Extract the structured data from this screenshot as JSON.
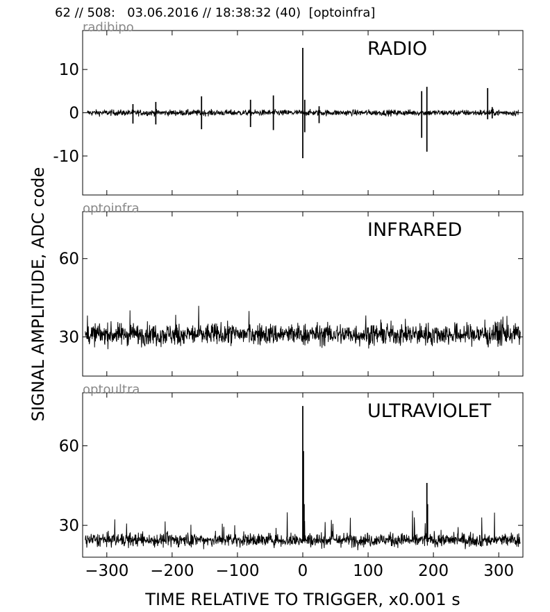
{
  "header": "62 // 508:   03.06.2016 // 18:38:32 (40)  [optoinfra]",
  "chart_data": {
    "type": "line",
    "xlabel": "TIME RELATIVE TO TRIGGER,   x0.001 s",
    "ylabel": "SIGNAL AMPLITUDE,  ADC code",
    "xlim": [
      -337,
      337
    ],
    "xticks": [
      -300,
      -200,
      -100,
      0,
      100,
      200,
      300
    ],
    "xtick_labels": [
      "−300",
      "−200",
      "−100",
      "0",
      "100",
      "200",
      "300"
    ],
    "panels": [
      {
        "channel": "radibipo",
        "title": "RADIO",
        "ylim": [
          -19,
          19
        ],
        "yticks": [
          10,
          0,
          -10
        ],
        "ytick_labels": [
          "10",
          "0",
          "-10"
        ],
        "baseline": 0,
        "noise": 0.7,
        "x_range": [
          -330,
          330
        ],
        "spikes": [
          {
            "x": 0,
            "high": 15,
            "low": -10.5
          },
          {
            "x": 3,
            "high": 3,
            "low": -4.5
          },
          {
            "x": -155,
            "high": 3.8,
            "low": -3.8
          },
          {
            "x": -80,
            "high": 3,
            "low": -3.3
          },
          {
            "x": -45,
            "high": 4,
            "low": -4
          },
          {
            "x": -225,
            "high": 2.5,
            "low": -2.7
          },
          {
            "x": -260,
            "high": 2,
            "low": -2.5
          },
          {
            "x": 25,
            "high": 1.5,
            "low": -2.4
          },
          {
            "x": 182,
            "high": 5,
            "low": -5.8
          },
          {
            "x": 190,
            "high": 6,
            "low": -9
          },
          {
            "x": 283,
            "high": 5.7,
            "low": -1.5
          },
          {
            "x": 290,
            "high": 1.3,
            "low": -1.3
          }
        ]
      },
      {
        "channel": "optoinfra",
        "title": "INFRARED",
        "ylim": [
          15,
          78
        ],
        "yticks": [
          60,
          30
        ],
        "ytick_labels": [
          "60",
          "30"
        ],
        "baseline": 31,
        "noise": 4.2,
        "x_range": [
          -333,
          333
        ],
        "spikes": []
      },
      {
        "channel": "optoultra",
        "title": "ULTRAVIOLET",
        "ylim": [
          18,
          80
        ],
        "yticks": [
          60,
          30
        ],
        "ytick_labels": [
          "60",
          "30"
        ],
        "baseline": 24.5,
        "noise": 2.6,
        "x_range": [
          -333,
          333
        ],
        "spikes": [
          {
            "x": 0,
            "high": 75,
            "low": 24
          },
          {
            "x": 1,
            "high": 58,
            "low": 24
          },
          {
            "x": 2,
            "high": 38,
            "low": 24
          },
          {
            "x": 190,
            "high": 46,
            "low": 24
          },
          {
            "x": 191,
            "high": 38,
            "low": 24
          }
        ]
      }
    ]
  }
}
